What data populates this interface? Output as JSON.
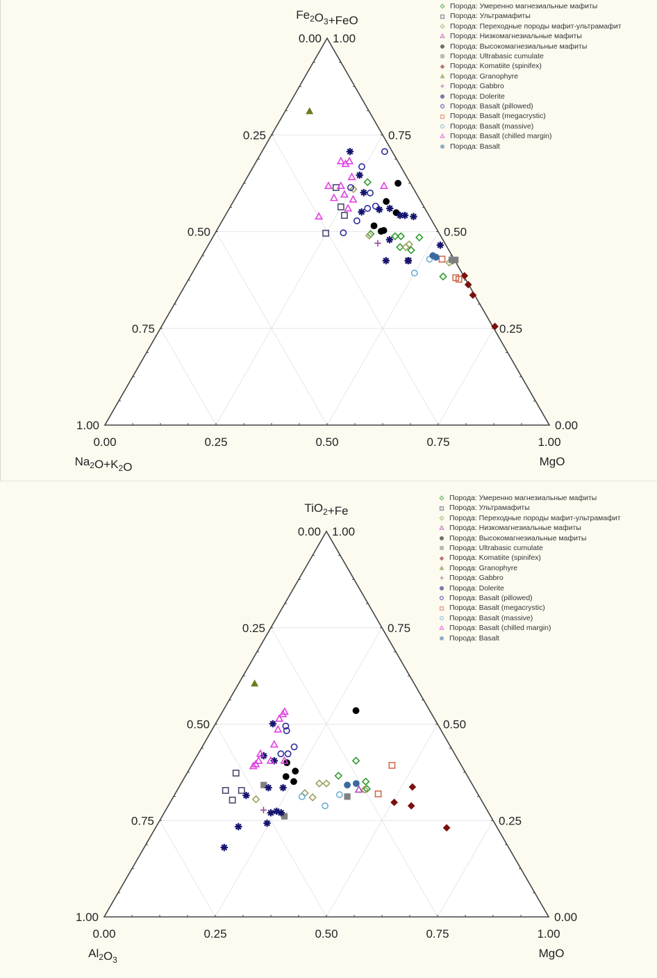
{
  "legend_prefix": "Порода: ",
  "series_styles": {
    "moderate_mg_mafic": {
      "marker": "diamond-open",
      "color": "#2e9a2e"
    },
    "ultramafic": {
      "marker": "square-open",
      "color": "#4a4a70"
    },
    "transitional": {
      "marker": "diamond-open",
      "color": "#9aa060"
    },
    "low_mg_mafic": {
      "marker": "triangle-open",
      "color": "#b04ab0"
    },
    "high_mg_mafic": {
      "marker": "circle-filled",
      "color": "#000000"
    },
    "ultrabasic_cumulate": {
      "marker": "square-filled",
      "color": "#808080"
    },
    "komatiite": {
      "marker": "diamond-filled",
      "color": "#7a1010"
    },
    "granophyre": {
      "marker": "triangle-filled",
      "color": "#6e7a20"
    },
    "gabbro": {
      "marker": "plus",
      "color": "#9a4a9a"
    },
    "dolerite": {
      "marker": "star",
      "color": "#14146e"
    },
    "basalt_pillowed": {
      "marker": "circle-open",
      "color": "#2a2a9a"
    },
    "basalt_megacrystic": {
      "marker": "square-open",
      "color": "#d06a4a"
    },
    "basalt_massive": {
      "marker": "circle-open",
      "color": "#6aaed0"
    },
    "basalt_chilled": {
      "marker": "triangle-open",
      "color": "#e040e0"
    },
    "basalt": {
      "marker": "circle-filled",
      "color": "#3a6aa0"
    }
  },
  "chart_data": [
    {
      "type": "scatter",
      "subtype": "ternary",
      "title": "",
      "apex_label": {
        "main": "Fe",
        "sub1": "2",
        "mid": "O",
        "sub2": "3",
        "tail": "+FeO"
      },
      "left_label": {
        "main": "Na",
        "sub1": "2",
        "mid": "O+K",
        "sub2": "2",
        "tail": "O"
      },
      "right_label": {
        "main": "MgO",
        "sub1": "",
        "mid": "",
        "sub2": "",
        "tail": ""
      },
      "components": [
        "Fe2O3+FeO",
        "MgO",
        "Na2O+K2O"
      ],
      "ticks": [
        "0.00",
        "0.25",
        "0.50",
        "0.75",
        "1.00"
      ],
      "range": [
        0,
        1
      ],
      "grid": true,
      "legend_position": "top-right",
      "point_format": "[Fe2O3+FeO fraction, MgO fraction]",
      "series": [
        {
          "key": "moderate_mg_mafic",
          "name": "Умеренно магнезиальные мафиты",
          "points": [
            [
              0.628,
              0.277
            ],
            [
              0.488,
              0.409
            ],
            [
              0.488,
              0.422
            ],
            [
              0.485,
              0.465
            ],
            [
              0.452,
              0.463
            ],
            [
              0.46,
              0.434
            ],
            [
              0.384,
              0.569
            ],
            [
              0.425,
              0.57
            ],
            [
              0.494,
              0.351
            ]
          ]
        },
        {
          "key": "ultramafic",
          "name": "Ультрамафиты",
          "points": [
            [
              0.496,
              0.249
            ],
            [
              0.614,
              0.213
            ],
            [
              0.564,
              0.249
            ],
            [
              0.542,
              0.268
            ]
          ]
        },
        {
          "key": "transitional",
          "name": "Переходные породы мафит-ультрамафит",
          "points": [
            [
              0.61,
              0.254
            ],
            [
              0.467,
              0.451
            ],
            [
              0.46,
              0.447
            ],
            [
              0.42,
              0.565
            ],
            [
              0.49,
              0.35
            ]
          ]
        },
        {
          "key": "low_mg_mafic",
          "name": "Низкомагнезиальные мафиты",
          "points": []
        },
        {
          "key": "high_mg_mafic",
          "name": "Высокомагнезиальные мафиты",
          "points": [
            [
              0.625,
              0.347
            ],
            [
              0.578,
              0.344
            ],
            [
              0.549,
              0.381
            ],
            [
              0.515,
              0.348
            ],
            [
              0.501,
              0.371
            ],
            [
              0.503,
              0.376
            ]
          ]
        },
        {
          "key": "ultrabasic_cumulate",
          "name": "Ultrabasic cumulate",
          "points": [
            [
              0.425,
              0.47
            ],
            [
              0.427,
              0.567
            ],
            [
              0.427,
              0.575
            ]
          ]
        },
        {
          "key": "komatiite",
          "name": "Komatiite (spinifex)",
          "points": [
            [
              0.386,
              0.616
            ],
            [
              0.363,
              0.636
            ],
            [
              0.336,
              0.66
            ],
            [
              0.255,
              0.75
            ]
          ]
        },
        {
          "key": "granophyre",
          "name": "Granophyre",
          "points": [
            [
              0.811,
              0.055
            ]
          ]
        },
        {
          "key": "gabbro",
          "name": "Gabbro",
          "points": [
            [
              0.47,
              0.379
            ]
          ]
        },
        {
          "key": "dolerite",
          "name": "Dolerite",
          "points": [
            [
              0.707,
              0.198
            ],
            [
              0.646,
              0.25
            ],
            [
              0.601,
              0.282
            ],
            [
              0.557,
              0.339
            ],
            [
              0.56,
              0.361
            ],
            [
              0.542,
              0.393
            ],
            [
              0.542,
              0.404
            ],
            [
              0.539,
              0.425
            ],
            [
              0.479,
              0.401
            ],
            [
              0.425,
              0.42
            ],
            [
              0.425,
              0.47
            ],
            [
              0.465,
              0.522
            ],
            [
              0.551,
              0.302
            ]
          ]
        },
        {
          "key": "basalt_pillowed",
          "name": "Basalt (pillowed)",
          "points": [
            [
              0.707,
              0.276
            ],
            [
              0.668,
              0.244
            ],
            [
              0.497,
              0.288
            ],
            [
              0.528,
              0.303
            ],
            [
              0.56,
              0.311
            ],
            [
              0.566,
              0.326
            ],
            [
              0.6,
              0.297
            ],
            [
              0.614,
              0.246
            ]
          ]
        },
        {
          "key": "basalt_megacrystic",
          "name": "Basalt (megacrystic)",
          "points": [
            [
              0.429,
              0.544
            ],
            [
              0.381,
              0.599
            ],
            [
              0.377,
              0.608
            ]
          ]
        },
        {
          "key": "basalt_massive",
          "name": "Basalt (massive)",
          "points": [
            [
              0.393,
              0.5
            ],
            [
              0.429,
              0.516
            ]
          ]
        },
        {
          "key": "basalt_chilled",
          "name": "Basalt (chilled margin)",
          "points": [
            [
              0.682,
              0.19
            ],
            [
              0.675,
              0.204
            ],
            [
              0.682,
              0.209
            ],
            [
              0.618,
              0.194
            ],
            [
              0.618,
              0.222
            ],
            [
              0.596,
              0.241
            ],
            [
              0.587,
              0.222
            ],
            [
              0.539,
              0.212
            ],
            [
              0.583,
              0.267
            ],
            [
              0.618,
              0.319
            ],
            [
              0.56,
              0.267
            ],
            [
              0.641,
              0.235
            ]
          ]
        },
        {
          "key": "basalt",
          "name": "Basalt",
          "points": [
            [
              0.438,
              0.519
            ],
            [
              0.434,
              0.528
            ]
          ]
        }
      ]
    },
    {
      "type": "scatter",
      "subtype": "ternary",
      "title": "",
      "apex_label": {
        "main": "TiO",
        "sub1": "2",
        "mid": "+Fe",
        "sub2": "",
        "tail": ""
      },
      "left_label": {
        "main": "Al",
        "sub1": "2",
        "mid": "O",
        "sub2": "3",
        "tail": ""
      },
      "right_label": {
        "main": "MgO",
        "sub1": "",
        "mid": "",
        "sub2": "",
        "tail": ""
      },
      "components": [
        "TiO2+Fe",
        "MgO",
        "Al2O3"
      ],
      "ticks": [
        "0.00",
        "0.25",
        "0.50",
        "0.75",
        "1.00"
      ],
      "range": [
        0,
        1
      ],
      "grid": true,
      "legend_position": "top-right",
      "point_format": "[TiO2+Fe fraction, MgO fraction]",
      "series": [
        {
          "key": "moderate_mg_mafic",
          "name": "Умеренно магнезиальные мафиты",
          "points": [
            [
              0.405,
              0.364
            ],
            [
              0.366,
              0.344
            ],
            [
              0.351,
              0.413
            ],
            [
              0.332,
              0.425
            ]
          ]
        },
        {
          "key": "ultramafic",
          "name": "Ультрамафиты",
          "points": [
            [
              0.373,
              0.11
            ],
            [
              0.328,
              0.109
            ],
            [
              0.328,
              0.145
            ],
            [
              0.303,
              0.137
            ]
          ]
        },
        {
          "key": "transitional",
          "name": "Переходные породы мафит-ультрамафит",
          "points": [
            [
              0.321,
              0.291
            ],
            [
              0.346,
              0.311
            ],
            [
              0.346,
              0.327
            ],
            [
              0.31,
              0.314
            ],
            [
              0.305,
              0.189
            ],
            [
              0.33,
              0.421
            ]
          ]
        },
        {
          "key": "low_mg_mafic",
          "name": "Низкомагнезиальные мафиты",
          "points": [
            [
              0.33,
              0.408
            ]
          ]
        },
        {
          "key": "high_mg_mafic",
          "name": "Высокомагнезиальные мафиты",
          "points": [
            [
              0.535,
              0.299
            ],
            [
              0.4,
              0.211
            ],
            [
              0.378,
              0.241
            ],
            [
              0.364,
              0.227
            ],
            [
              0.351,
              0.251
            ]
          ]
        },
        {
          "key": "ultrabasic_cumulate",
          "name": "Ultrabasic cumulate",
          "points": [
            [
              0.342,
              0.188
            ],
            [
              0.312,
              0.391
            ],
            [
              0.261,
              0.275
            ]
          ]
        },
        {
          "key": "komatiite",
          "name": "Komatiite (spinifex)",
          "points": [
            [
              0.337,
              0.525
            ],
            [
              0.297,
              0.504
            ],
            [
              0.288,
              0.547
            ],
            [
              0.231,
              0.655
            ]
          ]
        },
        {
          "key": "granophyre",
          "name": "Granophyre",
          "points": [
            [
              0.605,
              0.036
            ]
          ]
        },
        {
          "key": "gabbro",
          "name": "Gabbro",
          "points": [
            [
              0.277,
              0.22
            ]
          ]
        },
        {
          "key": "dolerite",
          "name": "Dolerite",
          "points": [
            [
              0.501,
              0.129
            ],
            [
              0.418,
              0.15
            ],
            [
              0.405,
              0.18
            ],
            [
              0.315,
              0.162
            ],
            [
              0.335,
              0.202
            ],
            [
              0.335,
              0.235
            ],
            [
              0.27,
              0.24
            ],
            [
              0.274,
              0.251
            ],
            [
              0.27,
              0.263
            ],
            [
              0.243,
              0.245
            ],
            [
              0.234,
              0.185
            ],
            [
              0.18,
              0.18
            ]
          ]
        },
        {
          "key": "basalt_pillowed",
          "name": "Basalt (pillowed)",
          "points": [
            [
              0.495,
              0.161
            ],
            [
              0.483,
              0.169
            ],
            [
              0.441,
              0.207
            ],
            [
              0.423,
              0.186
            ],
            [
              0.423,
              0.202
            ]
          ]
        },
        {
          "key": "basalt_megacrystic",
          "name": "Basalt (megacrystic)",
          "points": [
            [
              0.393,
              0.451
            ],
            [
              0.319,
              0.457
            ]
          ]
        },
        {
          "key": "basalt_massive",
          "name": "Basalt (massive)",
          "points": [
            [
              0.317,
              0.371
            ],
            [
              0.288,
              0.353
            ],
            [
              0.312,
              0.289
            ]
          ]
        },
        {
          "key": "basalt_chilled",
          "name": "Basalt (chilled margin)",
          "points": [
            [
              0.526,
              0.139
            ],
            [
              0.514,
              0.137
            ],
            [
              0.532,
              0.14
            ],
            [
              0.486,
              0.148
            ],
            [
              0.423,
              0.14
            ],
            [
              0.405,
              0.145
            ],
            [
              0.391,
              0.14
            ],
            [
              0.447,
              0.159
            ],
            [
              0.405,
              0.172
            ],
            [
              0.396,
              0.143
            ],
            [
              0.405,
              0.203
            ]
          ]
        },
        {
          "key": "basalt",
          "name": "Basalt",
          "points": [
            [
              0.342,
              0.376
            ],
            [
              0.346,
              0.394
            ]
          ]
        }
      ]
    }
  ]
}
